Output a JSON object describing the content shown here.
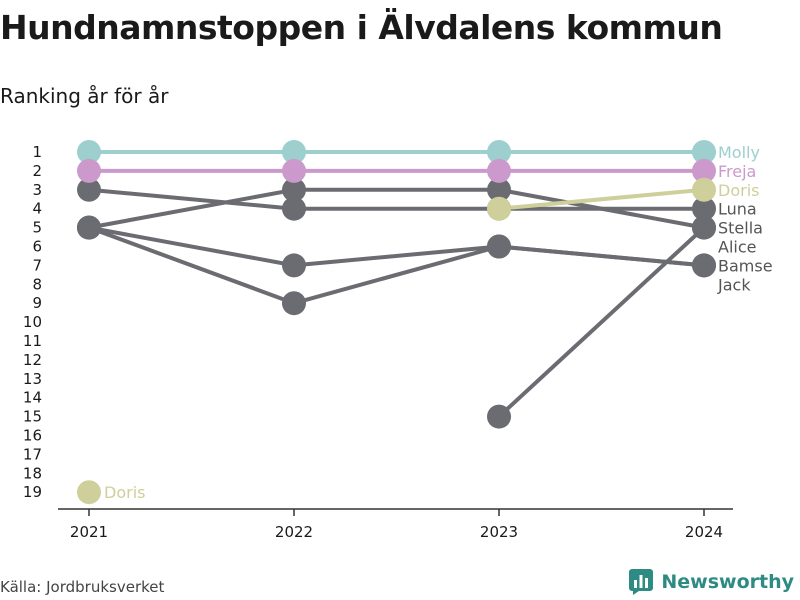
{
  "title": "Hundnamnstoppen i Älvdalens kommun",
  "subtitle": "Ranking år för år",
  "source": "Källa: Jordbruksverket",
  "brand": {
    "name": "Newsworthy",
    "icon": "bar-chart-logo-icon",
    "color": "#2e8b84"
  },
  "chart_data": {
    "type": "line",
    "title": "Hundnamnstoppen i Älvdalens kommun",
    "subtitle": "Ranking år för år",
    "xlabel": "",
    "ylabel": "",
    "x": [
      "2021",
      "2022",
      "2023",
      "2024"
    ],
    "y_ticks": [
      "1",
      "2",
      "3",
      "4",
      "5",
      "6",
      "7",
      "8",
      "9",
      "10",
      "11",
      "12",
      "13",
      "14",
      "15",
      "16",
      "17",
      "18",
      "19"
    ],
    "y_reversed": true,
    "ylim": [
      1,
      19
    ],
    "grid": false,
    "series": [
      {
        "name": "Molly",
        "color": "#9ecfcf",
        "values": [
          1,
          1,
          1,
          1
        ]
      },
      {
        "name": "Freja",
        "color": "#cc99cc",
        "values": [
          2,
          2,
          2,
          2
        ]
      },
      {
        "name": "Doris",
        "color": "#cfcf9b",
        "values": [
          19,
          null,
          4,
          3
        ]
      },
      {
        "name": "Luna",
        "color": "#6b6b72",
        "values": [
          3,
          4,
          4,
          4
        ]
      },
      {
        "name": "Stella",
        "color": "#6b6b72",
        "values": [
          5,
          3,
          3,
          5
        ]
      },
      {
        "name": "Alice",
        "color": "#6b6b72",
        "values": [
          5,
          9,
          6,
          7
        ]
      },
      {
        "name": "Bamse",
        "color": "#6b6b72",
        "values": [
          5,
          7,
          6,
          7
        ]
      },
      {
        "name": "Jack",
        "color": "#6b6b72",
        "values": [
          null,
          null,
          15,
          5
        ]
      }
    ],
    "end_labels": [
      {
        "text": "Molly",
        "color": "#9ecfcf",
        "rank": 1
      },
      {
        "text": "Freja",
        "color": "#cc99cc",
        "rank": 2
      },
      {
        "text": "Doris",
        "color": "#cfcf9b",
        "rank": 3
      },
      {
        "text": "Luna",
        "color": "#555558",
        "rank": 4
      },
      {
        "text": "Stella",
        "color": "#555558",
        "rank": 5
      },
      {
        "text": "Alice",
        "color": "#555558",
        "rank": 6
      },
      {
        "text": "Bamse",
        "color": "#555558",
        "rank": 7
      },
      {
        "text": "Jack",
        "color": "#555558",
        "rank": 8
      }
    ],
    "annotations": [
      {
        "text": "Doris",
        "x": "2021",
        "rank": 19,
        "color": "#cfcf9b"
      }
    ]
  }
}
